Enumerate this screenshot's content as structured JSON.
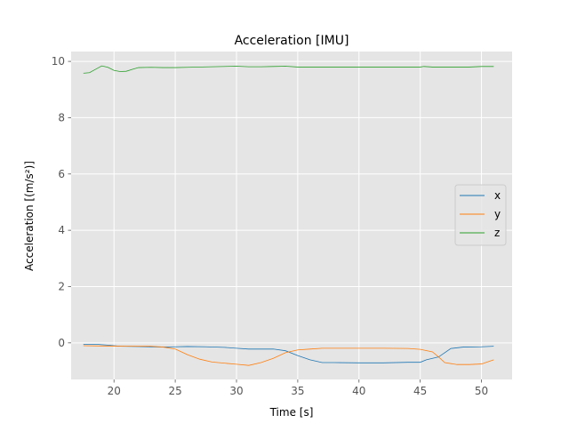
{
  "chart_data": {
    "type": "line",
    "title": "Acceleration [IMU]",
    "xlabel": "Time [s]",
    "ylabel": "Acceleration [(m/s²)]",
    "xlim": [
      16.5,
      52.5
    ],
    "ylim": [
      -1.3,
      10.35
    ],
    "xticks": [
      20,
      25,
      30,
      35,
      40,
      45,
      50
    ],
    "yticks": [
      0,
      2,
      4,
      6,
      8,
      10
    ],
    "grid": true,
    "legend_position": "center-right",
    "background": "#e5e5e5",
    "series": [
      {
        "name": "x",
        "color": "#1f77b4",
        "x": [
          17.5,
          18.5,
          19.5,
          20.5,
          22,
          24,
          25,
          26,
          27.5,
          29,
          30,
          31,
          32,
          33,
          34,
          35,
          36,
          37,
          38,
          40,
          42,
          44,
          45,
          45.5,
          46.5,
          47.5,
          48.5,
          50,
          51
        ],
        "y": [
          -0.05,
          -0.05,
          -0.08,
          -0.12,
          -0.13,
          -0.15,
          -0.14,
          -0.13,
          -0.14,
          -0.16,
          -0.19,
          -0.22,
          -0.22,
          -0.22,
          -0.28,
          -0.45,
          -0.6,
          -0.7,
          -0.7,
          -0.71,
          -0.71,
          -0.69,
          -0.69,
          -0.6,
          -0.5,
          -0.2,
          -0.15,
          -0.14,
          -0.12
        ]
      },
      {
        "name": "y",
        "color": "#ff7f0e",
        "x": [
          17.5,
          19,
          21,
          23,
          24,
          25,
          26,
          27,
          28,
          29,
          30,
          31,
          32,
          33,
          34,
          35,
          36,
          37,
          40,
          42,
          44,
          45,
          46,
          46.5,
          47,
          48,
          49,
          50,
          51
        ],
        "y": [
          -0.1,
          -0.11,
          -0.12,
          -0.12,
          -0.15,
          -0.22,
          -0.42,
          -0.58,
          -0.68,
          -0.72,
          -0.76,
          -0.8,
          -0.7,
          -0.55,
          -0.35,
          -0.25,
          -0.22,
          -0.19,
          -0.19,
          -0.19,
          -0.2,
          -0.23,
          -0.32,
          -0.5,
          -0.7,
          -0.77,
          -0.77,
          -0.75,
          -0.6
        ]
      },
      {
        "name": "z",
        "color": "#2ca02c",
        "x": [
          17.5,
          18,
          18.5,
          19,
          19.5,
          20,
          20.5,
          21,
          21.5,
          22,
          23,
          24,
          25,
          26,
          28,
          30,
          31,
          32,
          33,
          34,
          35,
          37,
          40,
          43,
          45,
          45.3,
          46,
          47,
          48,
          49,
          50,
          51
        ],
        "y": [
          9.58,
          9.6,
          9.72,
          9.84,
          9.79,
          9.68,
          9.64,
          9.65,
          9.72,
          9.78,
          9.79,
          9.78,
          9.78,
          9.79,
          9.81,
          9.83,
          9.81,
          9.81,
          9.82,
          9.83,
          9.8,
          9.8,
          9.8,
          9.8,
          9.8,
          9.82,
          9.8,
          9.8,
          9.8,
          9.8,
          9.82,
          9.82
        ]
      }
    ]
  }
}
